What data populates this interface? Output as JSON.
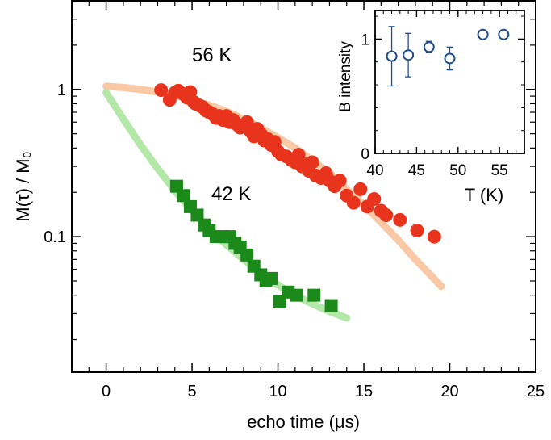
{
  "chart_data": [
    {
      "type": "scatter",
      "title": "",
      "xlabel": "echo time (μs)",
      "ylabel": "M(τ) / M₀",
      "xscale": "linear",
      "yscale": "log",
      "xlim": [
        -2,
        25
      ],
      "ylim": [
        0.012,
        4
      ],
      "xticks": [
        0,
        5,
        10,
        15,
        20,
        25
      ],
      "xtick_labels": [
        "0",
        "5",
        "10",
        "15",
        "20",
        "25"
      ],
      "yticks": [
        0.1,
        1
      ],
      "ytick_labels": [
        "0.1",
        "1"
      ],
      "annotations": [
        "56 K",
        "42 K"
      ],
      "series": [
        {
          "label": "56 K",
          "marker": "circle",
          "color": "#e8341c",
          "fit_color": "#f9c9a6",
          "x": [
            3.2,
            3.7,
            4.0,
            4.2,
            4.5,
            4.7,
            4.9,
            5.1,
            5.2,
            5.4,
            5.6,
            5.8,
            6.0,
            6.2,
            6.4,
            6.6,
            6.8,
            7.0,
            7.2,
            7.4,
            7.6,
            7.8,
            8.0,
            8.2,
            8.4,
            8.6,
            8.8,
            9.0,
            9.2,
            9.4,
            9.6,
            9.8,
            10.0,
            10.2,
            10.5,
            10.8,
            11.0,
            11.2,
            11.4,
            11.6,
            11.8,
            12.0,
            12.2,
            12.5,
            12.8,
            13.0,
            13.3,
            13.6,
            14.0,
            14.4,
            14.8,
            15.2,
            15.6,
            16.0,
            16.3,
            17.1,
            18.1,
            19.1
          ],
          "y": [
            0.99,
            0.85,
            0.95,
            0.98,
            0.93,
            0.88,
            0.96,
            0.82,
            0.8,
            0.78,
            0.76,
            0.72,
            0.7,
            0.68,
            0.64,
            0.66,
            0.62,
            0.66,
            0.6,
            0.62,
            0.58,
            0.55,
            0.57,
            0.6,
            0.52,
            0.48,
            0.54,
            0.5,
            0.45,
            0.46,
            0.42,
            0.44,
            0.38,
            0.36,
            0.35,
            0.33,
            0.32,
            0.36,
            0.3,
            0.31,
            0.28,
            0.32,
            0.26,
            0.25,
            0.27,
            0.24,
            0.22,
            0.24,
            0.19,
            0.17,
            0.21,
            0.16,
            0.18,
            0.15,
            0.14,
            0.13,
            0.11,
            0.1
          ],
          "fit": {
            "x": [
              0,
              1,
              2,
              3,
              4,
              5,
              6,
              7,
              8,
              9,
              10,
              11,
              12,
              13,
              14,
              15,
              16,
              17,
              18,
              19,
              19.5
            ],
            "y": [
              1.05,
              1.03,
              1.0,
              0.96,
              0.91,
              0.85,
              0.78,
              0.71,
              0.63,
              0.55,
              0.47,
              0.4,
              0.33,
              0.27,
              0.21,
              0.165,
              0.125,
              0.095,
              0.07,
              0.053,
              0.046
            ]
          }
        },
        {
          "label": "42 K",
          "marker": "square",
          "color": "#1b8a1b",
          "fit_color": "#b4e8a8",
          "x": [
            4.1,
            4.5,
            4.9,
            5.3,
            5.7,
            6.0,
            6.4,
            6.8,
            7.2,
            7.5,
            7.8,
            8.2,
            8.6,
            9.0,
            9.3,
            9.6,
            10.1,
            10.6,
            11.1,
            12.1,
            13.1
          ],
          "y": [
            0.22,
            0.19,
            0.16,
            0.14,
            0.12,
            0.11,
            0.1,
            0.1,
            0.1,
            0.09,
            0.085,
            0.075,
            0.063,
            0.055,
            0.05,
            0.052,
            0.036,
            0.042,
            0.04,
            0.04,
            0.034
          ],
          "fit": {
            "x": [
              0,
              1,
              2,
              3,
              4,
              5,
              6,
              7,
              8,
              9,
              10,
              11,
              12,
              13,
              14
            ],
            "y": [
              0.95,
              0.63,
              0.42,
              0.29,
              0.205,
              0.15,
              0.113,
              0.088,
              0.07,
              0.057,
              0.047,
              0.04,
              0.035,
              0.031,
              0.028
            ]
          }
        }
      ]
    },
    {
      "type": "scatter",
      "title": "",
      "xlabel": "T (K)",
      "ylabel": "B intensity",
      "xlim": [
        40,
        58
      ],
      "ylim": [
        0,
        1.25
      ],
      "xticks": [
        40,
        45,
        50,
        55
      ],
      "xtick_labels": [
        "40",
        "45",
        "50",
        "55"
      ],
      "yticks": [
        0,
        1
      ],
      "ytick_labels": [
        "0",
        "1"
      ],
      "series": [
        {
          "marker": "open-circle",
          "color": "#1f4e8c",
          "x": [
            42,
            44,
            46.5,
            49,
            53,
            55.5
          ],
          "y": [
            0.85,
            0.86,
            0.93,
            0.83,
            1.04,
            1.04
          ],
          "yerr": [
            0.26,
            0.19,
            0.05,
            0.1,
            0.03,
            0.03
          ]
        }
      ]
    }
  ]
}
